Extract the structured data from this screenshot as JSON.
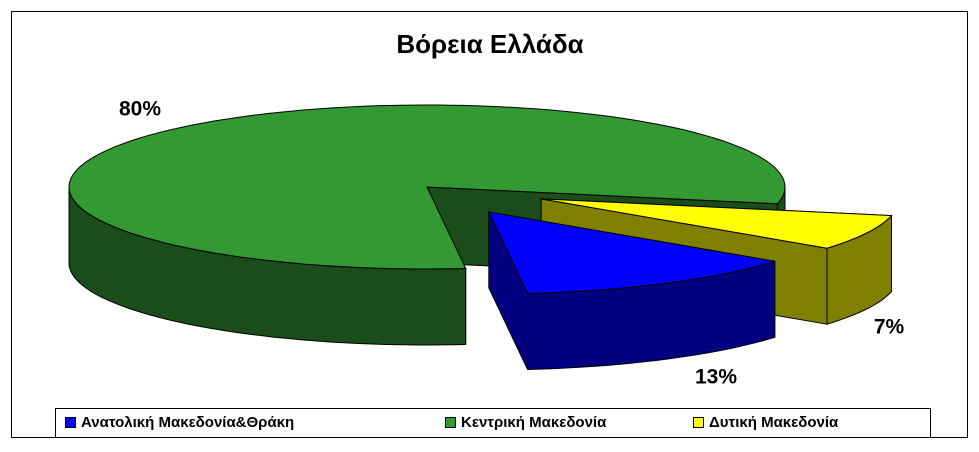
{
  "chart_data": {
    "type": "pie",
    "title": "Βόρεια Ελλάδα",
    "categories": [
      "Ανατολική Μακεδονία&Θράκη",
      "Κεντρική Μακεδονία",
      "Δυτική Μακεδονία"
    ],
    "values": [
      13,
      80,
      7
    ],
    "value_labels": [
      "13%",
      "80%",
      "7%"
    ],
    "colors": [
      "#0000ff",
      "#339933",
      "#ffff00"
    ],
    "legend": "bottom"
  }
}
